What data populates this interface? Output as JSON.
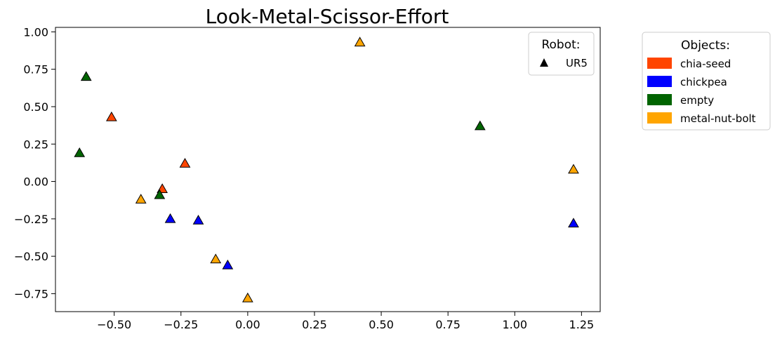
{
  "chart_data": {
    "type": "scatter",
    "title": "Look-Metal-Scissor-Effort",
    "xlabel": "",
    "ylabel": "",
    "xlim": [
      -0.72,
      1.32
    ],
    "ylim": [
      -0.87,
      1.03
    ],
    "xticks": [
      -0.5,
      -0.25,
      0.0,
      0.25,
      0.5,
      0.75,
      1.0,
      1.25
    ],
    "xtick_labels": [
      "−0.50",
      "−0.25",
      "0.00",
      "0.25",
      "0.50",
      "0.75",
      "1.00",
      "1.25"
    ],
    "yticks": [
      1.0,
      0.75,
      0.5,
      0.25,
      0.0,
      -0.25,
      -0.5,
      -0.75
    ],
    "ytick_labels": [
      "1.00",
      "0.75",
      "0.50",
      "0.25",
      "0.00",
      "−0.25",
      "−0.50",
      "−0.75"
    ],
    "grid": false,
    "marker": "triangle",
    "series": [
      {
        "name": "chia-seed",
        "color": "#FF4500",
        "points": [
          [
            -0.51,
            0.43
          ],
          [
            -0.235,
            0.12
          ],
          [
            -0.32,
            -0.05
          ]
        ]
      },
      {
        "name": "chickpea",
        "color": "#0000FF",
        "points": [
          [
            -0.29,
            -0.25
          ],
          [
            -0.185,
            -0.26
          ],
          [
            -0.075,
            -0.56
          ],
          [
            1.22,
            -0.28
          ]
        ]
      },
      {
        "name": "empty",
        "color": "#006400",
        "points": [
          [
            -0.605,
            0.7
          ],
          [
            -0.63,
            0.19
          ],
          [
            -0.33,
            -0.09
          ],
          [
            0.87,
            0.37
          ]
        ]
      },
      {
        "name": "metal-nut-bolt",
        "color": "#FFA500",
        "points": [
          [
            0.42,
            0.93
          ],
          [
            -0.4,
            -0.12
          ],
          [
            -0.12,
            -0.52
          ],
          [
            0.0,
            -0.78
          ],
          [
            1.22,
            0.08
          ]
        ]
      }
    ],
    "legends": {
      "robot": {
        "title": "Robot:",
        "entries": [
          "UR5"
        ],
        "placement": "upper-right-inside"
      },
      "objects": {
        "title": "Objects:",
        "entries": [
          "chia-seed",
          "chickpea",
          "empty",
          "metal-nut-bolt"
        ],
        "placement": "outside-right"
      }
    }
  }
}
